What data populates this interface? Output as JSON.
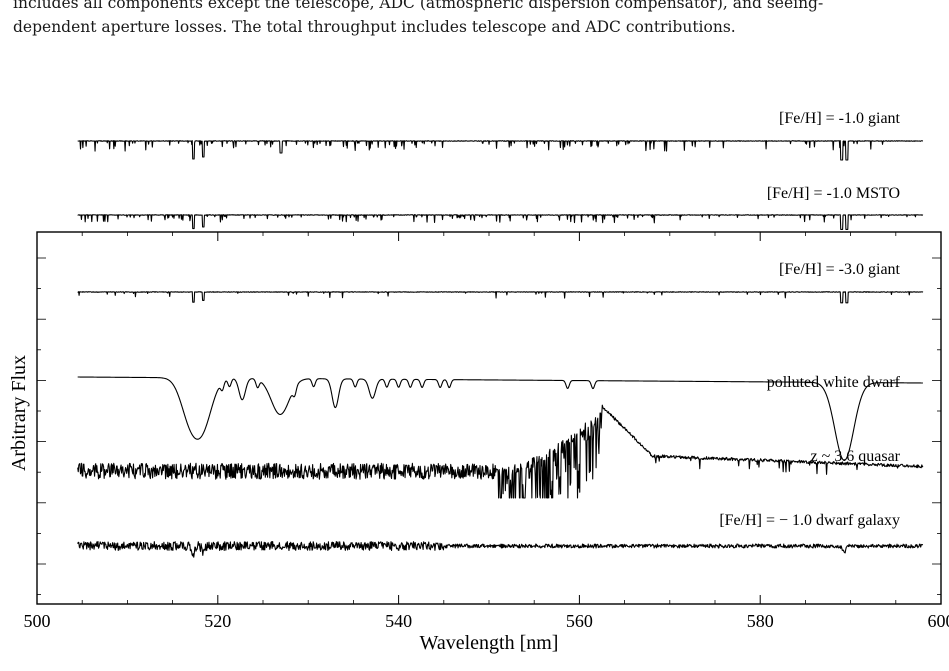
{
  "caption": {
    "line1": "includes all components except the telescope, ADC (atmospheric dispersion compensator), and seeing-",
    "line2": "dependent aperture losses. The total throughput includes telescope and ADC contributions.",
    "line3": ""
  },
  "chart_data": {
    "type": "line",
    "title": "",
    "xlabel": "Wavelength [nm]",
    "ylabel": "Arbitrary Flux",
    "xlim": [
      500,
      600
    ],
    "x_ticks": [
      500,
      520,
      540,
      560,
      580,
      600
    ],
    "x_tick_labels": [
      "500",
      "520",
      "540",
      "560",
      "580",
      "600"
    ],
    "y_tick_labels_shown": false,
    "grid": false,
    "legend": "none; each spectrum labelled directly above its right end",
    "wavelength_range": [
      504.5,
      598
    ],
    "series": [
      {
        "name": "[Fe/H] = -1.0 giant",
        "kind": "absorption spectrum",
        "offset_level": 6,
        "features": [
          {
            "x": 517.3,
            "depth": 0.9
          },
          {
            "x": 518.4,
            "depth": 0.8
          },
          {
            "x": 527.0,
            "depth": 0.6
          },
          {
            "x": 589.0,
            "depth": 0.95
          },
          {
            "x": 589.6,
            "depth": 0.95
          }
        ]
      },
      {
        "name": "[Fe/H] = -1.0 MSTO",
        "kind": "absorption spectrum",
        "offset_level": 5,
        "features": [
          {
            "x": 517.3,
            "depth": 0.85
          },
          {
            "x": 518.4,
            "depth": 0.75
          },
          {
            "x": 589.0,
            "depth": 0.9
          },
          {
            "x": 589.6,
            "depth": 0.9
          }
        ]
      },
      {
        "name": "[Fe/H] = -3.0 giant",
        "kind": "absorption spectrum",
        "offset_level": 4,
        "features": [
          {
            "x": 517.3,
            "depth": 0.85
          },
          {
            "x": 518.4,
            "depth": 0.7
          },
          {
            "x": 589.0,
            "depth": 0.9
          },
          {
            "x": 589.6,
            "depth": 0.9
          }
        ]
      },
      {
        "name": "polluted white dwarf",
        "kind": "pressure-broadened absorption spectrum",
        "offset_level": 3,
        "features": [
          {
            "x": 516.9,
            "depth": 0.8
          },
          {
            "x": 518.4,
            "depth": 0.9
          },
          {
            "x": 522.7,
            "depth": 0.45
          },
          {
            "x": 526.9,
            "depth": 0.75
          },
          {
            "x": 533.0,
            "depth": 0.6
          },
          {
            "x": 537.1,
            "depth": 0.4
          },
          {
            "x": 589.0,
            "depth": 0.85
          },
          {
            "x": 589.6,
            "depth": 0.85
          }
        ]
      },
      {
        "name": "z ~ 3.6 quasar",
        "kind": "quasar spectrum with Lyman-alpha forest and emission line",
        "offset_level": 2,
        "features": [
          {
            "x": 562.5,
            "type": "emission peak"
          },
          {
            "x_range": [
              551,
              562
            ],
            "type": "Lyman-alpha forest"
          }
        ]
      },
      {
        "name": "[Fe/H] = − 1.0 dwarf galaxy",
        "kind": "integrated-light spectrum",
        "offset_level": 1,
        "features": [
          {
            "x": 517.3,
            "depth": 0.5
          },
          {
            "x": 518.4,
            "depth": 0.4
          },
          {
            "x": 589.3,
            "depth": 0.5
          }
        ]
      }
    ]
  }
}
